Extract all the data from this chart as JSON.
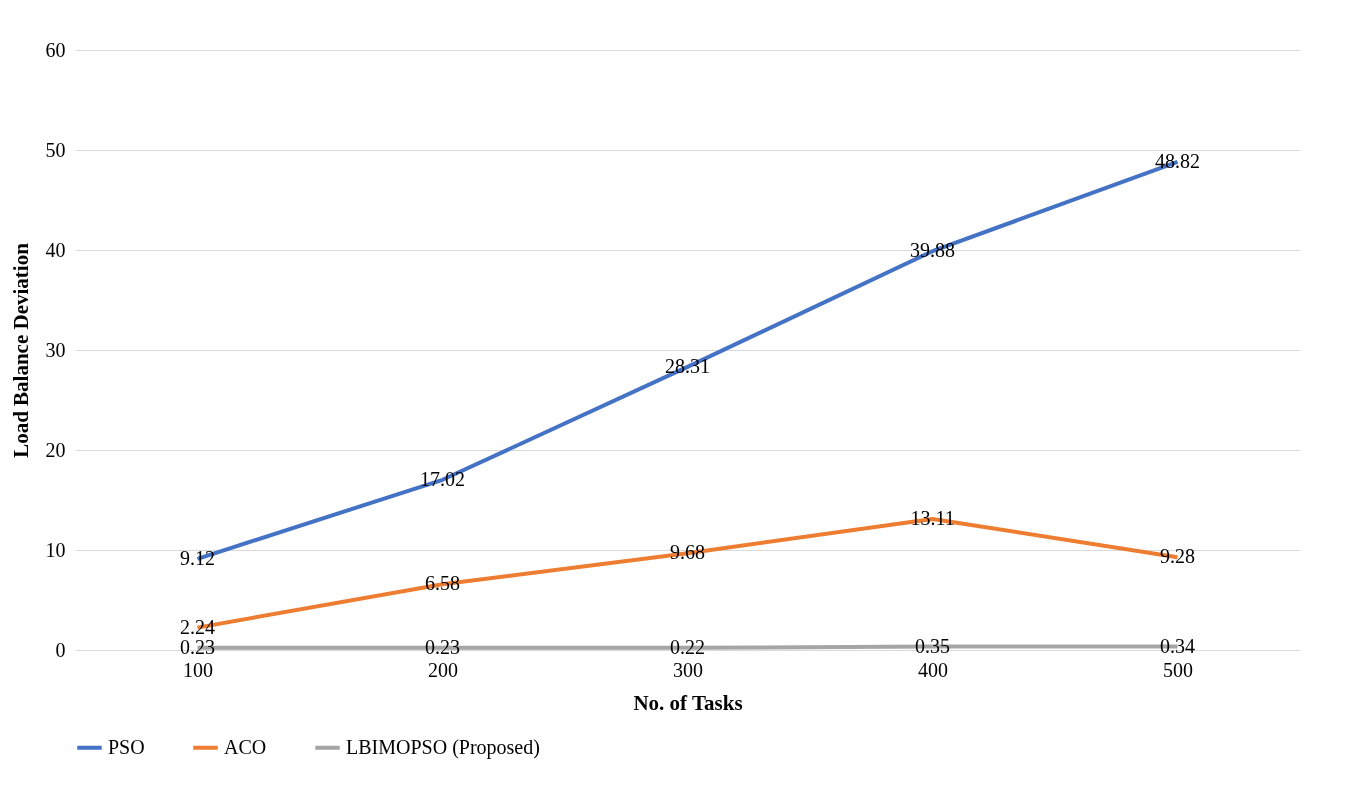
{
  "chart_data": {
    "type": "line",
    "xlabel": "No. of Tasks",
    "ylabel": "Load Balance Deviation",
    "categories": [
      "100",
      "200",
      "300",
      "400",
      "500"
    ],
    "series": [
      {
        "name": "PSO",
        "color": "#4472c4",
        "values": [
          9.12,
          17.02,
          28.31,
          39.88,
          48.82
        ]
      },
      {
        "name": "ACO",
        "color": "#ed7d31",
        "values": [
          2.24,
          6.58,
          9.68,
          13.11,
          9.28
        ]
      },
      {
        "name": "LBIMOPSO (Proposed)",
        "color": "#a5a5a5",
        "values": [
          0.23,
          0.23,
          0.22,
          0.35,
          0.34
        ]
      }
    ],
    "ylim": [
      0,
      60
    ],
    "yticks": [
      0,
      10,
      20,
      30,
      40,
      50,
      60
    ],
    "grid": "y",
    "legend": "bottom",
    "data_labels": true,
    "marker": "none",
    "line_style": "solid"
  }
}
